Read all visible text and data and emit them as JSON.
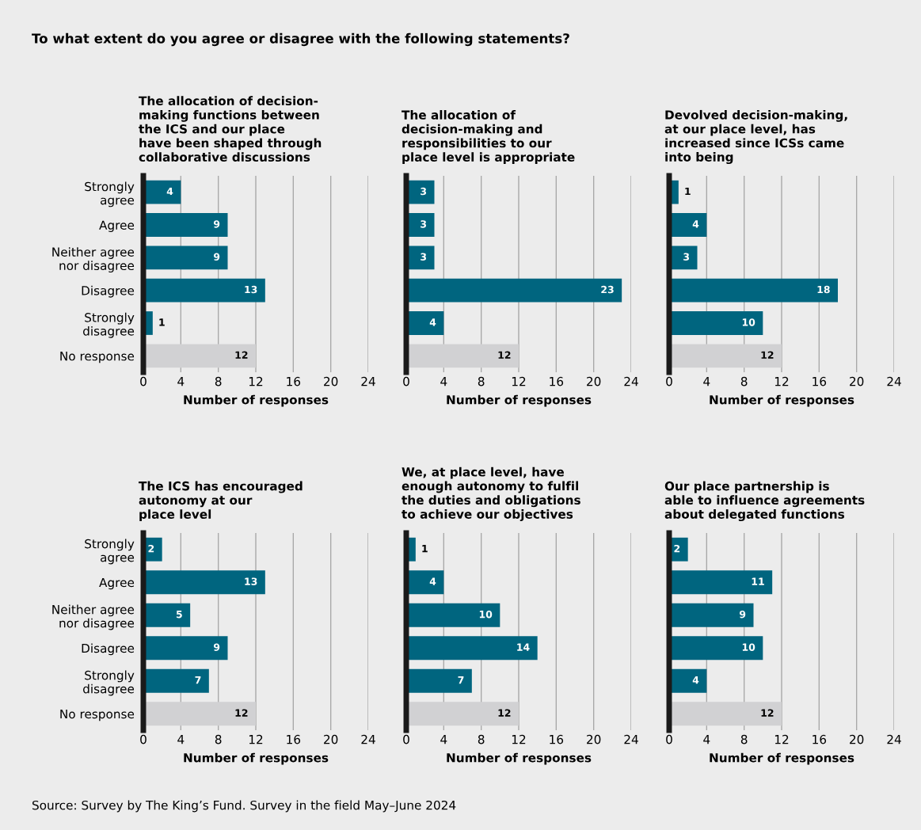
{
  "chart_data": [
    {
      "type": "bar",
      "orientation": "horizontal",
      "title": "The allocation of decision-\nmaking functions between\nthe ICS and our place\nhave been shaped through\ncollaborative discussions",
      "categories": [
        "Strongly\nagree",
        "Agree",
        "Neither agree\nnor disagree",
        "Disagree",
        "Strongly\ndisagree",
        "No response"
      ],
      "values": [
        4,
        9,
        9,
        13,
        1,
        12
      ],
      "colors": [
        "#00657f",
        "#00657f",
        "#00657f",
        "#00657f",
        "#00657f",
        "#d1d1d3"
      ],
      "xlabel": "Number of responses",
      "xlim": [
        0,
        24
      ],
      "xticks": [
        0,
        4,
        8,
        12,
        16,
        20,
        24
      ],
      "grid": "x",
      "data_labels": true,
      "annotations": [
        "To what extent do you agree or disagree with the following statements?",
        "Source: Survey by The King’s Fund. Survey in the field May–June 2024"
      ]
    },
    {
      "type": "bar",
      "orientation": "horizontal",
      "title": "The allocation of\ndecision-making and\nresponsibilities to our\nplace level is appropriate",
      "categories": [
        null,
        null,
        null,
        null,
        null,
        null
      ],
      "values": [
        3,
        3,
        3,
        23,
        4,
        12
      ],
      "colors": [
        "#00657f",
        "#00657f",
        "#00657f",
        "#00657f",
        "#00657f",
        "#d1d1d3"
      ],
      "xlabel": "Number of responses",
      "xlim": [
        0,
        24
      ],
      "xticks": [
        0,
        4,
        8,
        12,
        16,
        20,
        24
      ],
      "grid": "x",
      "data_labels": true
    },
    {
      "type": "bar",
      "orientation": "horizontal",
      "title": "Devolved decision-making,\nat our place level, has\nincreased since ICSs came\ninto being",
      "categories": [
        null,
        null,
        null,
        null,
        null,
        null
      ],
      "values": [
        1,
        4,
        3,
        18,
        10,
        12
      ],
      "colors": [
        "#00657f",
        "#00657f",
        "#00657f",
        "#00657f",
        "#00657f",
        "#d1d1d3"
      ],
      "xlabel": "Number of responses",
      "xlim": [
        0,
        24
      ],
      "xticks": [
        0,
        4,
        8,
        12,
        16,
        20,
        24
      ],
      "grid": "x",
      "data_labels": true
    },
    {
      "type": "bar",
      "orientation": "horizontal",
      "title": "The ICS has encouraged\nautonomy at our\nplace level",
      "categories": [
        "Strongly\nagree",
        "Agree",
        "Neither agree\nnor disagree",
        "Disagree",
        "Strongly\ndisagree",
        "No response"
      ],
      "values": [
        2,
        13,
        5,
        9,
        7,
        12
      ],
      "colors": [
        "#00657f",
        "#00657f",
        "#00657f",
        "#00657f",
        "#00657f",
        "#d1d1d3"
      ],
      "xlabel": "Number of responses",
      "xlim": [
        0,
        24
      ],
      "xticks": [
        0,
        4,
        8,
        12,
        16,
        20,
        24
      ],
      "grid": "x",
      "data_labels": true
    },
    {
      "type": "bar",
      "orientation": "horizontal",
      "title": "We, at place level, have\nenough autonomy to fulfil\nthe duties and obligations\nto achieve our objectives",
      "categories": [
        null,
        null,
        null,
        null,
        null,
        null
      ],
      "values": [
        1,
        4,
        10,
        14,
        7,
        12
      ],
      "colors": [
        "#00657f",
        "#00657f",
        "#00657f",
        "#00657f",
        "#00657f",
        "#d1d1d3"
      ],
      "xlabel": "Number of responses",
      "xlim": [
        0,
        24
      ],
      "xticks": [
        0,
        4,
        8,
        12,
        16,
        20,
        24
      ],
      "grid": "x",
      "data_labels": true
    },
    {
      "type": "bar",
      "orientation": "horizontal",
      "title": "Our place partnership is\nable to influence agreements\nabout delegated functions",
      "categories": [
        null,
        null,
        null,
        null,
        null,
        null
      ],
      "values": [
        2,
        11,
        9,
        10,
        4,
        12
      ],
      "colors": [
        "#00657f",
        "#00657f",
        "#00657f",
        "#00657f",
        "#00657f",
        "#d1d1d3"
      ],
      "xlabel": "Number of responses",
      "xlim": [
        0,
        24
      ],
      "xticks": [
        0,
        4,
        8,
        12,
        16,
        20,
        24
      ],
      "grid": "x",
      "data_labels": true
    }
  ]
}
